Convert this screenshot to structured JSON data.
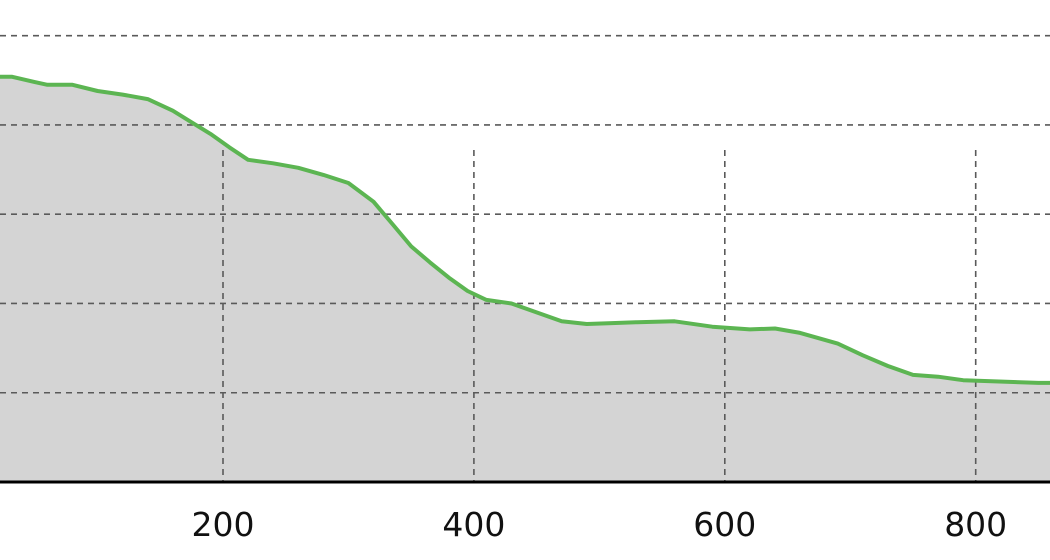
{
  "chart_data": {
    "type": "area",
    "title": "",
    "xlabel": "",
    "ylabel": "",
    "x_ticks": [
      200,
      400,
      600,
      800
    ],
    "y_gridlines": [
      100,
      200,
      300,
      400,
      500
    ],
    "xlim": [
      22,
      860
    ],
    "ylim": [
      0,
      540
    ],
    "grid": true,
    "series": [
      {
        "x": [
          22,
          32,
          50,
          60,
          80,
          100,
          120,
          140,
          160,
          175,
          190,
          205,
          220,
          240,
          260,
          280,
          300,
          320,
          335,
          350,
          365,
          380,
          395,
          410,
          430,
          450,
          470,
          490,
          510,
          530,
          560,
          590,
          610,
          620,
          640,
          660,
          690,
          710,
          730,
          750,
          770,
          790,
          810,
          830,
          850,
          860
        ],
        "y": [
          454,
          454,
          448,
          445,
          445,
          438,
          434,
          429,
          416,
          403,
          390,
          375,
          361,
          357,
          352,
          344,
          335,
          314,
          289,
          264,
          246,
          229,
          214,
          204,
          200,
          190,
          180,
          177,
          178,
          179,
          180,
          174,
          172,
          171,
          172,
          167,
          155,
          142,
          130,
          120,
          118,
          114,
          113,
          112,
          111,
          111
        ]
      }
    ],
    "colors": {
      "line": "#5cb552",
      "fill": "#d4d4d4",
      "grid": "#5a5a5a",
      "axis": "#000000",
      "background": "#ffffff"
    }
  }
}
